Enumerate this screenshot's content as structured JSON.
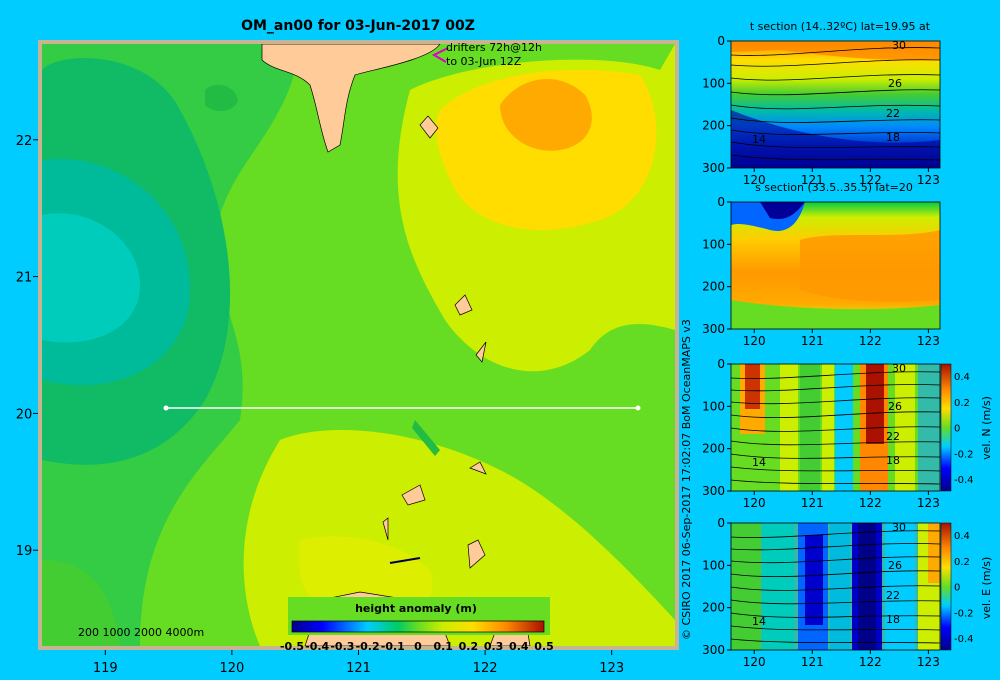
{
  "chart_data": [
    {
      "type": "heatmap",
      "title": "OM_an00 for 03-Jun-2017 00Z",
      "xlim": [
        118.5,
        123.5
      ],
      "ylim": [
        18.3,
        22.7
      ],
      "x_ticks": [
        "119",
        "120",
        "121",
        "122",
        "123"
      ],
      "y_ticks": [
        "19",
        "20",
        "21",
        "22"
      ],
      "annotation_lines": [
        "drifters 72h@12h",
        "to 03-Jun 12Z"
      ],
      "depth_legend": "200  1000  2000  4000m",
      "colorbar": {
        "title": "height anomaly  (m)",
        "ticks": [
          "-0.5",
          "-0.4",
          "-0.3",
          "-0.2",
          "-0.1",
          "0",
          "0.1",
          "0.2",
          "0.3",
          "0.4",
          "0.5"
        ],
        "range": [
          -0.5,
          0.5
        ]
      },
      "section_line": {
        "lat": 20,
        "lon_start": 119.5,
        "lon_end": 123.2
      },
      "regions": [
        {
          "label": "",
          "value": -0.3,
          "center": [
            118.9,
            20.9
          ]
        },
        {
          "label": "",
          "value": 0.3,
          "center": [
            122.6,
            22.2
          ]
        }
      ]
    },
    {
      "type": "heatmap",
      "title": "t section (14..32ºC) lat=19.95 at",
      "x_ticks": [
        "120",
        "121",
        "122",
        "123"
      ],
      "y_ticks": [
        "0",
        "100",
        "200",
        "300"
      ],
      "contour_labels": [
        "30",
        "26",
        "22",
        "18",
        "14"
      ]
    },
    {
      "type": "heatmap",
      "title": "s section (33.5..35.5) lat=20",
      "x_ticks": [
        "120",
        "121",
        "122",
        "123"
      ],
      "y_ticks": [
        "0",
        "100",
        "200",
        "300"
      ]
    },
    {
      "type": "heatmap",
      "title": "",
      "colorbar_label": "vel. N  (m/s)",
      "colorbar_ticks": [
        "0.4",
        "0.2",
        "0",
        "-0.2",
        "-0.4"
      ],
      "x_ticks": [
        "120",
        "121",
        "122",
        "123"
      ],
      "y_ticks": [
        "0",
        "100",
        "200",
        "300"
      ],
      "contour_labels": [
        "30",
        "26",
        "22",
        "18",
        "14"
      ]
    },
    {
      "type": "heatmap",
      "title": "",
      "colorbar_label": "vel. E  (m/s)",
      "colorbar_ticks": [
        "0.4",
        "0.2",
        "0",
        "-0.2",
        "-0.4"
      ],
      "x_ticks": [
        "120",
        "121",
        "122",
        "123"
      ],
      "y_ticks": [
        "0",
        "100",
        "200",
        "300"
      ],
      "contour_labels": [
        "30",
        "26",
        "22",
        "18",
        "14"
      ]
    }
  ],
  "credit": "© CSIRO 2017   06-Sep-2017 17:02:07 BoM OceanMAPS v3"
}
